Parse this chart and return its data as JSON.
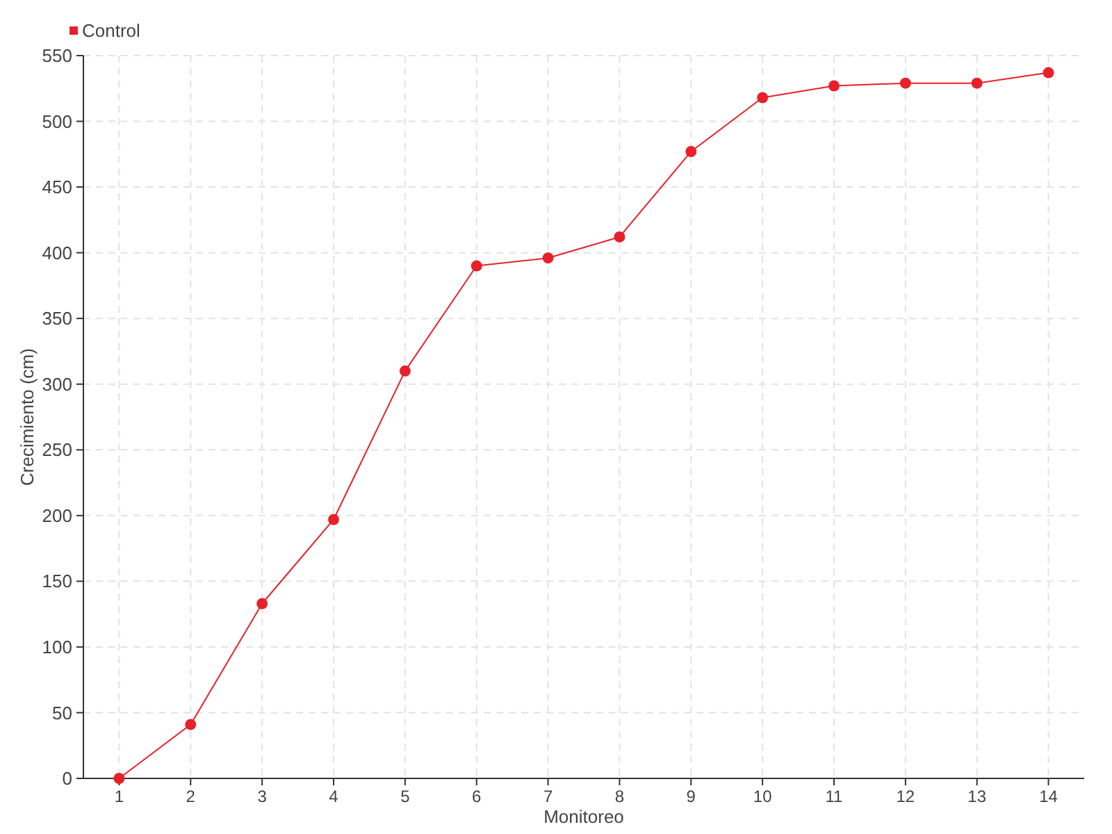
{
  "chart_data": {
    "type": "line",
    "xlabel": "Monitoreo",
    "ylabel": "Crecimiento (cm)",
    "x": [
      1,
      2,
      3,
      4,
      5,
      6,
      7,
      8,
      9,
      10,
      11,
      12,
      13,
      14
    ],
    "series": [
      {
        "name": "Control",
        "color": "#e8202a",
        "values": [
          0,
          41,
          133,
          197,
          310,
          390,
          396,
          412,
          477,
          518,
          527,
          529,
          529,
          537
        ]
      }
    ],
    "xlim": [
      0.5,
      14.5
    ],
    "xticks": [
      1,
      2,
      3,
      4,
      5,
      6,
      7,
      8,
      9,
      10,
      11,
      12,
      13,
      14
    ],
    "ylim": [
      0,
      550
    ],
    "yticks": [
      0,
      50,
      100,
      150,
      200,
      250,
      300,
      350,
      400,
      450,
      500,
      550
    ],
    "grid": true,
    "legend": "top left",
    "marker": "circle",
    "line_style": "solid"
  }
}
